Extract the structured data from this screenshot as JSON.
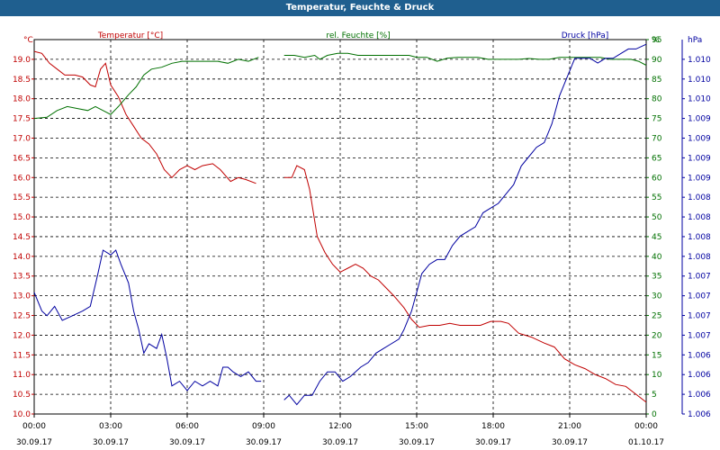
{
  "chart_data": {
    "type": "line",
    "title": "Temperatur, Feuchte & Druck",
    "colors": {
      "temperature": "#c00000",
      "humidity": "#007000",
      "pressure": "#0000a0",
      "grid": "#000000"
    },
    "x": {
      "range_hours": [
        0,
        24
      ],
      "ticks": [
        {
          "h": 0,
          "time": "00:00",
          "date": "30.09.17"
        },
        {
          "h": 3,
          "time": "03:00",
          "date": "30.09.17"
        },
        {
          "h": 6,
          "time": "06:00",
          "date": "30.09.17"
        },
        {
          "h": 9,
          "time": "09:00",
          "date": "30.09.17"
        },
        {
          "h": 12,
          "time": "12:00",
          "date": "30.09.17"
        },
        {
          "h": 15,
          "time": "15:00",
          "date": "30.09.17"
        },
        {
          "h": 18,
          "time": "18:00",
          "date": "30.09.17"
        },
        {
          "h": 21,
          "time": "21:00",
          "date": "30.09.17"
        },
        {
          "h": 24,
          "time": "00:00",
          "date": "01.10.17"
        }
      ]
    },
    "axes": {
      "temperature": {
        "unit": "°C",
        "label": "Temperatur [°C]",
        "range": [
          10.0,
          19.5
        ],
        "ticks": [
          "10.0",
          "10.5",
          "11.0",
          "11.5",
          "12.0",
          "12.5",
          "13.0",
          "13.5",
          "14.0",
          "14.5",
          "15.0",
          "15.5",
          "16.0",
          "16.5",
          "17.0",
          "17.5",
          "18.0",
          "18.5",
          "19.0"
        ]
      },
      "humidity": {
        "unit": "%",
        "label": "rel. Feuchte [%]",
        "range": [
          0,
          95
        ],
        "ticks": [
          "0",
          "5",
          "10",
          "15",
          "20",
          "25",
          "30",
          "35",
          "40",
          "45",
          "50",
          "55",
          "60",
          "65",
          "70",
          "75",
          "80",
          "85",
          "90",
          "95"
        ]
      },
      "pressure": {
        "unit": "hPa",
        "label": "Druck [hPa]",
        "range": [
          1006.0,
          1010.0
        ],
        "ticks": [
          "1.006",
          "1.006",
          "1.006",
          "1.006",
          "1.007",
          "1.007",
          "1.007",
          "1.007",
          "1.008",
          "1.008",
          "1.008",
          "1.008",
          "1.009",
          "1.009",
          "1.009",
          "1.009",
          "1.010",
          "1.010",
          "1.010"
        ]
      }
    },
    "series": [
      {
        "name": "Temperatur",
        "axis": "temperature",
        "segments": [
          [
            [
              0,
              19.2
            ],
            [
              0.3,
              19.15
            ],
            [
              0.6,
              18.9
            ],
            [
              0.9,
              18.75
            ],
            [
              1.2,
              18.6
            ],
            [
              1.6,
              18.6
            ],
            [
              1.9,
              18.55
            ],
            [
              2.2,
              18.35
            ],
            [
              2.4,
              18.3
            ],
            [
              2.6,
              18.75
            ],
            [
              2.8,
              18.9
            ],
            [
              3.0,
              18.35
            ],
            [
              3.3,
              18.05
            ],
            [
              3.6,
              17.6
            ],
            [
              3.9,
              17.3
            ],
            [
              4.2,
              17.0
            ],
            [
              4.5,
              16.85
            ],
            [
              4.8,
              16.6
            ],
            [
              5.1,
              16.2
            ],
            [
              5.4,
              16.0
            ],
            [
              5.7,
              16.2
            ],
            [
              6.0,
              16.3
            ],
            [
              6.3,
              16.2
            ],
            [
              6.6,
              16.3
            ],
            [
              7.0,
              16.35
            ],
            [
              7.3,
              16.2
            ],
            [
              7.7,
              15.9
            ],
            [
              8.0,
              16.0
            ],
            [
              8.3,
              15.95
            ],
            [
              8.7,
              15.85
            ]
          ],
          [
            [
              9.8,
              16.0
            ],
            [
              10.1,
              16.0
            ],
            [
              10.3,
              16.3
            ],
            [
              10.6,
              16.2
            ],
            [
              10.8,
              15.7
            ],
            [
              11.1,
              14.5
            ],
            [
              11.4,
              14.1
            ],
            [
              11.7,
              13.8
            ],
            [
              12.0,
              13.6
            ],
            [
              12.3,
              13.7
            ],
            [
              12.6,
              13.8
            ],
            [
              12.9,
              13.7
            ],
            [
              13.2,
              13.5
            ],
            [
              13.5,
              13.4
            ],
            [
              13.8,
              13.2
            ],
            [
              14.1,
              13.0
            ],
            [
              14.5,
              12.7
            ],
            [
              14.8,
              12.4
            ],
            [
              15.1,
              12.2
            ],
            [
              15.5,
              12.25
            ],
            [
              15.9,
              12.25
            ],
            [
              16.3,
              12.3
            ],
            [
              16.7,
              12.25
            ],
            [
              17.1,
              12.25
            ],
            [
              17.5,
              12.25
            ],
            [
              17.9,
              12.35
            ],
            [
              18.3,
              12.35
            ],
            [
              18.6,
              12.3
            ],
            [
              19.0,
              12.05
            ],
            [
              19.5,
              11.95
            ],
            [
              20.0,
              11.8
            ],
            [
              20.4,
              11.7
            ],
            [
              20.8,
              11.4
            ],
            [
              21.2,
              11.25
            ],
            [
              21.6,
              11.15
            ],
            [
              22.0,
              11.0
            ],
            [
              22.4,
              10.9
            ],
            [
              22.8,
              10.75
            ],
            [
              23.2,
              10.7
            ],
            [
              23.6,
              10.5
            ],
            [
              24.0,
              10.3
            ]
          ]
        ]
      },
      {
        "name": "rel. Feuchte",
        "axis": "humidity",
        "segments": [
          [
            [
              0,
              75
            ],
            [
              0.5,
              75.3
            ],
            [
              0.9,
              77
            ],
            [
              1.3,
              78
            ],
            [
              1.7,
              77.5
            ],
            [
              2.1,
              77
            ],
            [
              2.4,
              78
            ],
            [
              2.7,
              77
            ],
            [
              3.0,
              76
            ],
            [
              3.3,
              78
            ],
            [
              3.7,
              81
            ],
            [
              4.0,
              83
            ],
            [
              4.3,
              86
            ],
            [
              4.6,
              87.5
            ],
            [
              5.0,
              88
            ],
            [
              5.4,
              89
            ],
            [
              5.8,
              89.5
            ],
            [
              6.3,
              89.5
            ],
            [
              6.8,
              89.5
            ],
            [
              7.2,
              89.5
            ],
            [
              7.6,
              89
            ],
            [
              8.0,
              90
            ],
            [
              8.4,
              89.5
            ],
            [
              8.8,
              90.5
            ]
          ],
          [
            [
              9.8,
              91
            ],
            [
              10.2,
              91
            ],
            [
              10.6,
              90.5
            ],
            [
              11.0,
              91
            ],
            [
              11.2,
              90
            ],
            [
              11.5,
              91
            ],
            [
              11.9,
              91.5
            ],
            [
              12.3,
              91.5
            ],
            [
              12.7,
              91
            ],
            [
              13.1,
              91
            ],
            [
              13.5,
              91
            ],
            [
              13.9,
              91
            ],
            [
              14.3,
              91
            ],
            [
              14.7,
              91
            ],
            [
              15.0,
              90.5
            ],
            [
              15.4,
              90.5
            ],
            [
              15.8,
              89.5
            ],
            [
              16.2,
              90.3
            ],
            [
              16.6,
              90.5
            ],
            [
              17.0,
              90.5
            ],
            [
              17.4,
              90.5
            ],
            [
              17.8,
              90
            ],
            [
              18.2,
              90
            ],
            [
              18.6,
              90
            ],
            [
              19.0,
              90
            ],
            [
              19.4,
              90.2
            ],
            [
              19.8,
              90
            ],
            [
              20.2,
              90
            ],
            [
              20.6,
              90.5
            ],
            [
              21.0,
              90.5
            ],
            [
              21.4,
              90.5
            ],
            [
              21.8,
              90.5
            ],
            [
              22.2,
              90.5
            ],
            [
              22.6,
              90
            ],
            [
              23.0,
              90
            ],
            [
              23.4,
              90
            ],
            [
              23.7,
              89.5
            ],
            [
              24.0,
              88.5
            ]
          ]
        ]
      },
      {
        "name": "Druck",
        "axis": "pressure",
        "segments": [
          [
            [
              0,
              1007.3
            ],
            [
              0.3,
              1007.1
            ],
            [
              0.5,
              1007.05
            ],
            [
              0.8,
              1007.15
            ],
            [
              1.1,
              1007.0
            ],
            [
              1.5,
              1007.05
            ],
            [
              1.9,
              1007.1
            ],
            [
              2.2,
              1007.15
            ],
            [
              2.5,
              1007.5
            ],
            [
              2.7,
              1007.75
            ],
            [
              3.0,
              1007.7
            ],
            [
              3.2,
              1007.75
            ],
            [
              3.4,
              1007.6
            ],
            [
              3.7,
              1007.4
            ],
            [
              3.9,
              1007.1
            ],
            [
              4.1,
              1006.9
            ],
            [
              4.3,
              1006.65
            ],
            [
              4.5,
              1006.75
            ],
            [
              4.8,
              1006.7
            ],
            [
              5.0,
              1006.85
            ],
            [
              5.2,
              1006.6
            ],
            [
              5.4,
              1006.3
            ],
            [
              5.7,
              1006.35
            ],
            [
              6.0,
              1006.25
            ],
            [
              6.3,
              1006.35
            ],
            [
              6.6,
              1006.3
            ],
            [
              6.9,
              1006.35
            ],
            [
              7.2,
              1006.3
            ],
            [
              7.4,
              1006.5
            ],
            [
              7.6,
              1006.5
            ],
            [
              7.8,
              1006.45
            ],
            [
              8.1,
              1006.4
            ],
            [
              8.4,
              1006.45
            ],
            [
              8.7,
              1006.35
            ],
            [
              8.9,
              1006.35
            ]
          ],
          [
            [
              9.8,
              1006.15
            ],
            [
              10.0,
              1006.2
            ],
            [
              10.3,
              1006.1
            ],
            [
              10.6,
              1006.2
            ],
            [
              10.9,
              1006.2
            ],
            [
              11.2,
              1006.35
            ],
            [
              11.5,
              1006.45
            ],
            [
              11.8,
              1006.45
            ],
            [
              12.1,
              1006.35
            ],
            [
              12.4,
              1006.4
            ],
            [
              12.8,
              1006.5
            ],
            [
              13.1,
              1006.55
            ],
            [
              13.4,
              1006.65
            ],
            [
              13.7,
              1006.7
            ],
            [
              14.0,
              1006.75
            ],
            [
              14.3,
              1006.8
            ],
            [
              14.5,
              1006.9
            ],
            [
              14.8,
              1007.1
            ],
            [
              15.0,
              1007.3
            ],
            [
              15.2,
              1007.5
            ],
            [
              15.5,
              1007.6
            ],
            [
              15.8,
              1007.65
            ],
            [
              16.1,
              1007.65
            ],
            [
              16.4,
              1007.8
            ],
            [
              16.7,
              1007.9
            ],
            [
              17.0,
              1007.95
            ],
            [
              17.3,
              1008.0
            ],
            [
              17.6,
              1008.15
            ],
            [
              17.9,
              1008.2
            ],
            [
              18.2,
              1008.25
            ],
            [
              18.5,
              1008.35
            ],
            [
              18.8,
              1008.45
            ],
            [
              19.1,
              1008.65
            ],
            [
              19.4,
              1008.75
            ],
            [
              19.7,
              1008.85
            ],
            [
              20.0,
              1008.9
            ],
            [
              20.3,
              1009.1
            ],
            [
              20.6,
              1009.4
            ],
            [
              20.9,
              1009.6
            ],
            [
              21.2,
              1009.8
            ],
            [
              21.5,
              1009.8
            ],
            [
              21.8,
              1009.8
            ],
            [
              22.1,
              1009.75
            ],
            [
              22.4,
              1009.8
            ],
            [
              22.7,
              1009.8
            ],
            [
              23.0,
              1009.85
            ],
            [
              23.3,
              1009.9
            ],
            [
              23.6,
              1009.9
            ],
            [
              24.0,
              1009.95
            ]
          ]
        ]
      }
    ]
  }
}
